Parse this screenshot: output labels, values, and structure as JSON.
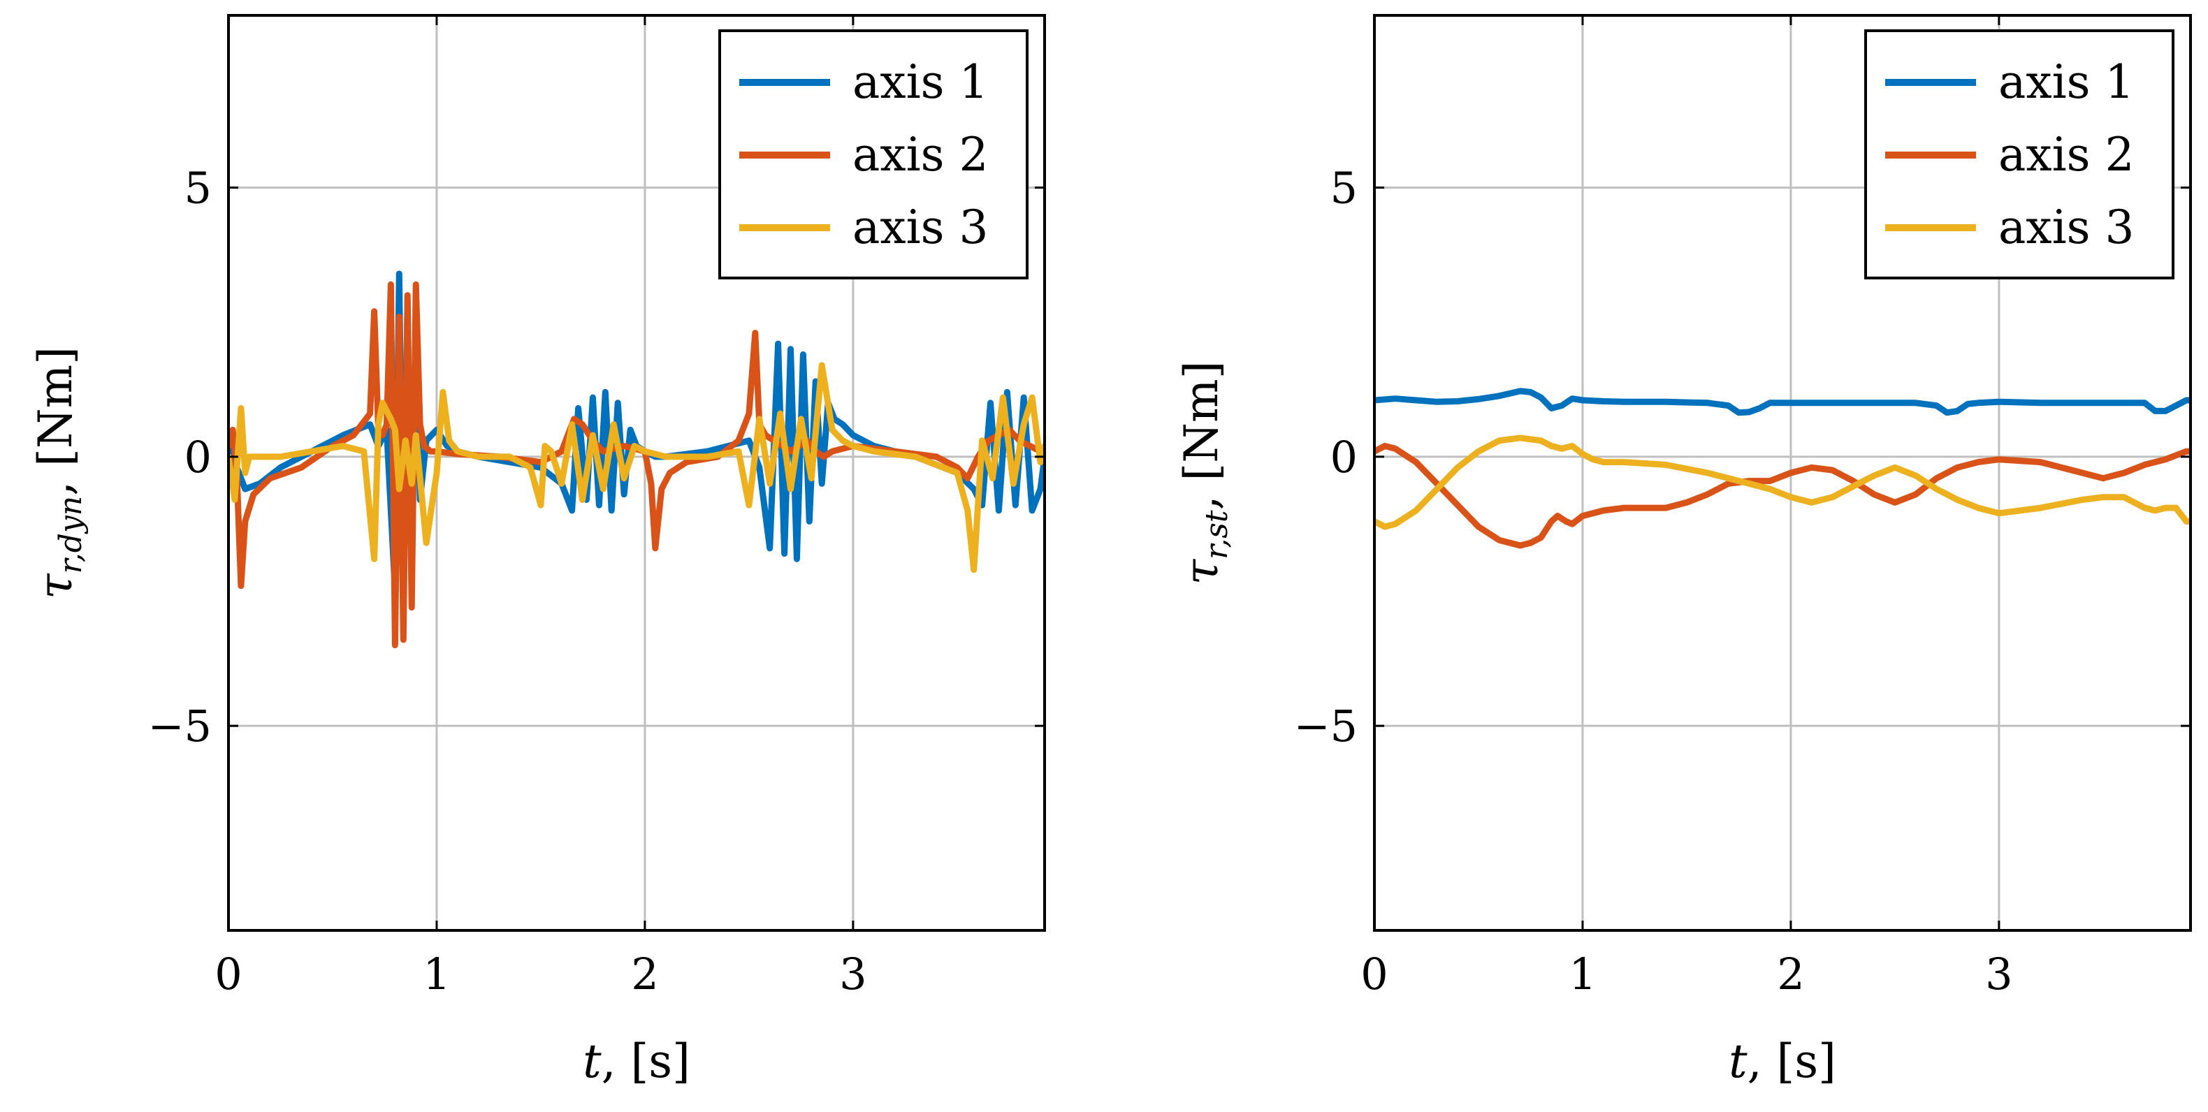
{
  "chart_data": [
    {
      "type": "line",
      "xlabel_var": "t",
      "xlabel_unit": ", [s]",
      "ylabel_var": "τ",
      "ylabel_sub": "r,dyn",
      "ylabel_unit": ", [Nm]",
      "xlim": [
        0,
        3.92
      ],
      "ylim": [
        -8.8,
        8.2
      ],
      "xticks": [
        0,
        1,
        2,
        3
      ],
      "xtick_labels": [
        "0",
        "1",
        "2",
        "3"
      ],
      "yticks": [
        -5,
        0,
        5
      ],
      "ytick_labels": [
        "−5",
        "0",
        "5"
      ],
      "grid": true,
      "legend_position": "top-right",
      "series": [
        {
          "name": "axis 1",
          "color": "#0072BD",
          "x": [
            0,
            0.04,
            0.08,
            0.15,
            0.25,
            0.4,
            0.55,
            0.68,
            0.72,
            0.76,
            0.78,
            0.8,
            0.82,
            0.84,
            0.86,
            0.88,
            0.9,
            0.92,
            0.95,
            1.0,
            1.05,
            1.1,
            1.2,
            1.35,
            1.5,
            1.6,
            1.65,
            1.68,
            1.72,
            1.75,
            1.78,
            1.81,
            1.84,
            1.87,
            1.9,
            1.93,
            1.96,
            2.0,
            2.05,
            2.1,
            2.3,
            2.5,
            2.55,
            2.6,
            2.64,
            2.67,
            2.7,
            2.73,
            2.76,
            2.79,
            2.82,
            2.85,
            2.88,
            2.91,
            2.95,
            3.0,
            3.1,
            3.3,
            3.5,
            3.58,
            3.62,
            3.66,
            3.7,
            3.74,
            3.78,
            3.82,
            3.86,
            3.9,
            3.92
          ],
          "values": [
            0.3,
            -0.2,
            -0.6,
            -0.5,
            -0.2,
            0.1,
            0.4,
            0.6,
            0.2,
            0.5,
            -1.0,
            -2.5,
            3.4,
            -2.6,
            2.9,
            -2.3,
            2.5,
            -0.8,
            0.3,
            0.5,
            0.2,
            0.1,
            0.0,
            -0.1,
            -0.2,
            -0.5,
            -1.0,
            0.9,
            -0.8,
            1.1,
            -0.9,
            1.2,
            -1.0,
            1.0,
            -0.7,
            0.5,
            0.2,
            0.1,
            0.0,
            0.0,
            0.1,
            0.3,
            -0.2,
            -1.7,
            2.1,
            -1.8,
            2.0,
            -1.9,
            1.9,
            -1.2,
            1.4,
            -0.5,
            1.0,
            0.7,
            0.6,
            0.4,
            0.2,
            0.0,
            -0.3,
            -0.6,
            -0.9,
            1.0,
            -1.0,
            1.2,
            -0.9,
            1.1,
            -1.0,
            -0.6,
            0.0
          ]
        },
        {
          "name": "axis 2",
          "color": "#D95319",
          "x": [
            0,
            0.02,
            0.04,
            0.06,
            0.08,
            0.12,
            0.2,
            0.35,
            0.5,
            0.6,
            0.68,
            0.7,
            0.72,
            0.74,
            0.76,
            0.78,
            0.8,
            0.82,
            0.84,
            0.86,
            0.88,
            0.9,
            0.92,
            0.94,
            0.97,
            1.0,
            1.1,
            1.3,
            1.5,
            1.6,
            1.66,
            1.7,
            1.75,
            1.8,
            1.9,
            2.0,
            2.03,
            2.05,
            2.08,
            2.12,
            2.2,
            2.35,
            2.45,
            2.5,
            2.53,
            2.55,
            2.58,
            2.62,
            2.66,
            2.7,
            2.74,
            2.78,
            2.82,
            2.86,
            2.9,
            3.0,
            3.2,
            3.4,
            3.5,
            3.55,
            3.6,
            3.65,
            3.7,
            3.75,
            3.8,
            3.85,
            3.9,
            3.92
          ],
          "values": [
            0.2,
            0.5,
            -0.3,
            -2.4,
            -1.2,
            -0.7,
            -0.4,
            -0.2,
            0.2,
            0.4,
            0.8,
            2.7,
            0.5,
            0.4,
            0.6,
            3.2,
            -3.5,
            2.6,
            -3.4,
            3.0,
            -2.8,
            3.2,
            0.6,
            0.2,
            0.1,
            0.1,
            0.05,
            0.0,
            -0.1,
            0.1,
            0.7,
            0.6,
            0.3,
            0.1,
            0.2,
            0.1,
            -0.5,
            -1.7,
            -0.6,
            -0.3,
            -0.1,
            0.0,
            0.3,
            0.8,
            2.3,
            0.6,
            0.4,
            0.3,
            0.2,
            0.1,
            0.2,
            0.3,
            0.1,
            0.0,
            0.1,
            0.2,
            0.1,
            0.0,
            -0.2,
            -0.4,
            0.0,
            0.3,
            0.4,
            0.5,
            0.3,
            0.2,
            0.1,
            0.0
          ]
        },
        {
          "name": "axis 3",
          "color": "#EDB120",
          "x": [
            0,
            0.03,
            0.06,
            0.08,
            0.1,
            0.12,
            0.15,
            0.25,
            0.4,
            0.55,
            0.65,
            0.7,
            0.72,
            0.74,
            0.78,
            0.8,
            0.82,
            0.85,
            0.88,
            0.9,
            0.95,
            1.0,
            1.03,
            1.06,
            1.1,
            1.2,
            1.35,
            1.45,
            1.5,
            1.52,
            1.55,
            1.6,
            1.65,
            1.7,
            1.75,
            1.8,
            1.85,
            1.9,
            1.95,
            2.0,
            2.1,
            2.3,
            2.45,
            2.5,
            2.55,
            2.6,
            2.65,
            2.7,
            2.75,
            2.8,
            2.85,
            2.9,
            2.95,
            3.0,
            3.1,
            3.3,
            3.5,
            3.55,
            3.58,
            3.62,
            3.67,
            3.72,
            3.77,
            3.82,
            3.86,
            3.9,
            3.92
          ],
          "values": [
            0.0,
            -0.8,
            0.9,
            -0.3,
            0.0,
            0.0,
            0.0,
            0.0,
            0.1,
            0.2,
            0.1,
            -1.9,
            0.6,
            1.0,
            0.7,
            0.5,
            -0.6,
            0.3,
            -0.5,
            0.4,
            -1.6,
            -0.3,
            1.2,
            0.3,
            0.1,
            0.0,
            0.0,
            -0.2,
            -0.9,
            0.2,
            0.1,
            -0.5,
            0.6,
            -0.8,
            0.4,
            -0.6,
            0.6,
            -0.4,
            0.2,
            0.1,
            0.0,
            0.0,
            0.1,
            -0.9,
            0.7,
            -0.5,
            0.8,
            -0.6,
            0.7,
            -0.4,
            1.7,
            0.5,
            0.3,
            0.2,
            0.1,
            0.0,
            -0.3,
            -1.0,
            -2.1,
            0.3,
            -0.4,
            1.1,
            -0.5,
            0.6,
            1.1,
            -0.1,
            0.2
          ]
        }
      ]
    },
    {
      "type": "line",
      "xlabel_var": "t",
      "xlabel_unit": ", [s]",
      "ylabel_var": "τ",
      "ylabel_sub": "r,st",
      "ylabel_unit": ", [Nm]",
      "xlim": [
        0,
        3.92
      ],
      "ylim": [
        -8.8,
        8.2
      ],
      "xticks": [
        0,
        1,
        2,
        3
      ],
      "xtick_labels": [
        "0",
        "1",
        "2",
        "3"
      ],
      "yticks": [
        -5,
        0,
        5
      ],
      "ytick_labels": [
        "−5",
        "0",
        "5"
      ],
      "grid": true,
      "legend_position": "top-right",
      "series": [
        {
          "name": "axis 1",
          "color": "#0072BD",
          "x": [
            0,
            0.1,
            0.2,
            0.3,
            0.4,
            0.5,
            0.6,
            0.7,
            0.75,
            0.8,
            0.85,
            0.9,
            0.95,
            1.0,
            1.1,
            1.2,
            1.3,
            1.4,
            1.5,
            1.6,
            1.7,
            1.75,
            1.8,
            1.85,
            1.9,
            2.0,
            2.2,
            2.4,
            2.6,
            2.7,
            2.75,
            2.8,
            2.85,
            2.9,
            3.0,
            3.2,
            3.4,
            3.6,
            3.7,
            3.75,
            3.8,
            3.85,
            3.9,
            3.92
          ],
          "values": [
            1.05,
            1.08,
            1.05,
            1.02,
            1.03,
            1.07,
            1.13,
            1.22,
            1.2,
            1.1,
            0.9,
            0.95,
            1.08,
            1.05,
            1.03,
            1.02,
            1.02,
            1.02,
            1.01,
            1.0,
            0.95,
            0.82,
            0.83,
            0.9,
            1.0,
            1.0,
            1.0,
            1.0,
            1.0,
            0.95,
            0.82,
            0.85,
            0.98,
            1.0,
            1.02,
            1.0,
            1.0,
            1.0,
            1.0,
            0.85,
            0.85,
            0.95,
            1.05,
            1.05
          ]
        },
        {
          "name": "axis 2",
          "color": "#D95319",
          "x": [
            0,
            0.05,
            0.1,
            0.2,
            0.3,
            0.4,
            0.5,
            0.6,
            0.7,
            0.75,
            0.8,
            0.85,
            0.88,
            0.92,
            0.95,
            1.0,
            1.1,
            1.2,
            1.4,
            1.5,
            1.6,
            1.7,
            1.8,
            1.9,
            2.0,
            2.1,
            2.2,
            2.3,
            2.4,
            2.5,
            2.6,
            2.7,
            2.8,
            2.9,
            3.0,
            3.2,
            3.4,
            3.5,
            3.6,
            3.7,
            3.8,
            3.9,
            3.92
          ],
          "values": [
            0.1,
            0.2,
            0.15,
            -0.1,
            -0.5,
            -0.9,
            -1.3,
            -1.55,
            -1.65,
            -1.6,
            -1.5,
            -1.2,
            -1.1,
            -1.2,
            -1.25,
            -1.1,
            -1.0,
            -0.95,
            -0.95,
            -0.85,
            -0.7,
            -0.5,
            -0.45,
            -0.45,
            -0.3,
            -0.2,
            -0.25,
            -0.45,
            -0.7,
            -0.85,
            -0.7,
            -0.4,
            -0.2,
            -0.1,
            -0.05,
            -0.1,
            -0.3,
            -0.4,
            -0.3,
            -0.15,
            -0.05,
            0.1,
            0.1
          ]
        },
        {
          "name": "axis 3",
          "color": "#EDB120",
          "x": [
            0,
            0.05,
            0.1,
            0.2,
            0.3,
            0.4,
            0.5,
            0.6,
            0.7,
            0.8,
            0.85,
            0.9,
            0.95,
            1.0,
            1.05,
            1.1,
            1.2,
            1.4,
            1.6,
            1.7,
            1.8,
            1.9,
            2.0,
            2.1,
            2.2,
            2.3,
            2.4,
            2.5,
            2.6,
            2.7,
            2.8,
            2.9,
            3.0,
            3.2,
            3.4,
            3.5,
            3.6,
            3.7,
            3.75,
            3.8,
            3.85,
            3.9,
            3.92
          ],
          "values": [
            -1.2,
            -1.3,
            -1.25,
            -1.0,
            -0.6,
            -0.2,
            0.1,
            0.3,
            0.35,
            0.3,
            0.2,
            0.15,
            0.2,
            0.05,
            -0.05,
            -0.1,
            -0.1,
            -0.15,
            -0.3,
            -0.4,
            -0.5,
            -0.6,
            -0.75,
            -0.85,
            -0.75,
            -0.55,
            -0.35,
            -0.2,
            -0.35,
            -0.6,
            -0.8,
            -0.95,
            -1.05,
            -0.95,
            -0.8,
            -0.75,
            -0.75,
            -0.95,
            -1.0,
            -0.95,
            -0.95,
            -1.2,
            -1.2
          ]
        }
      ]
    }
  ]
}
